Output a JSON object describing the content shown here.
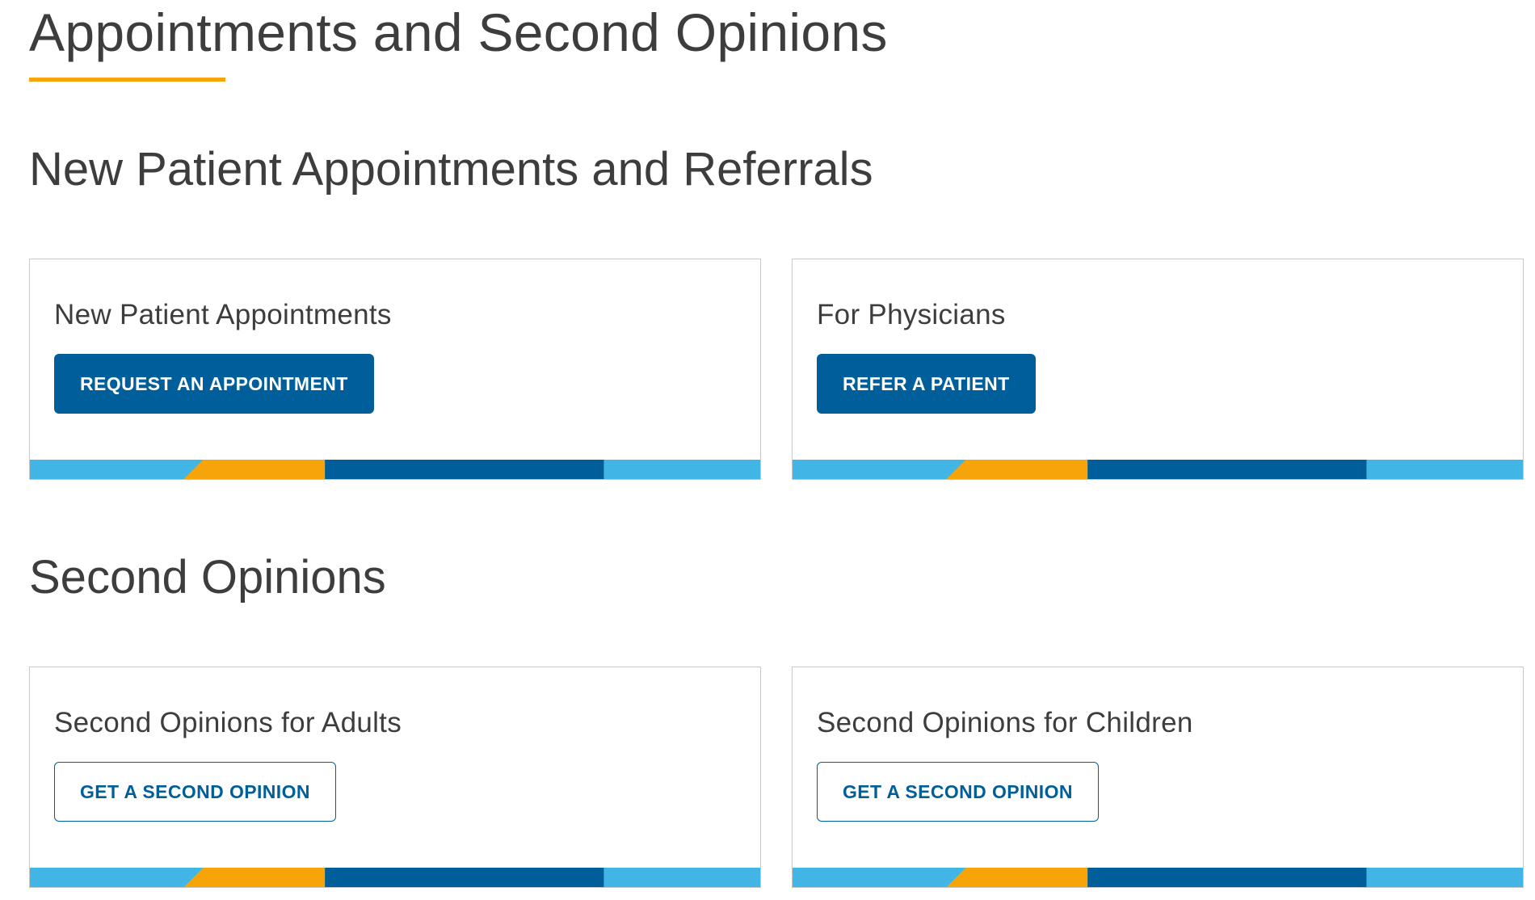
{
  "page": {
    "title": "Appointments and Second Opinions"
  },
  "sections": [
    {
      "heading": "New Patient Appointments and Referrals",
      "cards": [
        {
          "title": "New Patient Appointments",
          "button": "REQUEST AN APPOINTMENT",
          "style": "primary"
        },
        {
          "title": "For Physicians",
          "button": "REFER A PATIENT",
          "style": "primary"
        }
      ]
    },
    {
      "heading": "Second Opinions",
      "cards": [
        {
          "title": "Second Opinions for Adults",
          "button": "GET A SECOND OPINION",
          "style": "outline"
        },
        {
          "title": "Second Opinions for Children",
          "button": "GET A SECOND OPINION",
          "style": "outline"
        }
      ]
    }
  ],
  "colors": {
    "accent_orange": "#f7a30a",
    "brand_blue": "#005f9a",
    "light_blue": "#41b6e6",
    "text_gray": "#3d3d3d"
  }
}
